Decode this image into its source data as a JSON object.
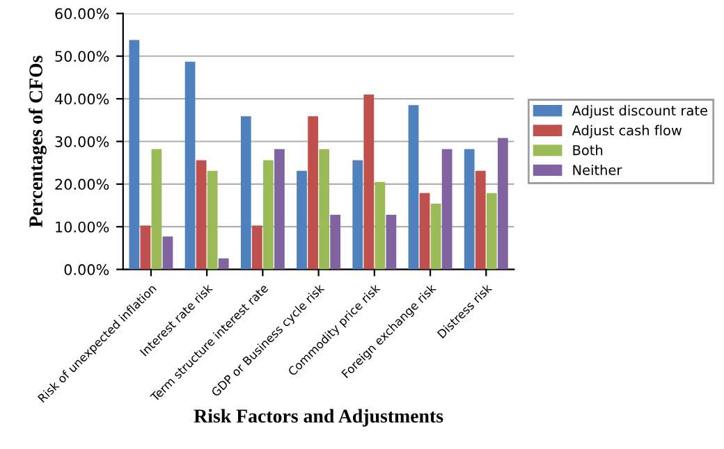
{
  "chart_data": {
    "type": "bar",
    "xlabel": "Risk Factors and Adjustments",
    "ylabel": "Percentages of CFOs",
    "categories": [
      "Risk of unexpected inflation",
      "Interest rate risk",
      "Term structure interest rate",
      "GDP or Business cycle risk",
      "Commodity price risk",
      "Foreign exchange risk",
      "Distress risk"
    ],
    "series": [
      {
        "name": "Adjust discount rate",
        "color": "#4f81bd",
        "values": [
          53.8,
          48.7,
          35.9,
          23.1,
          25.6,
          38.5,
          28.2
        ]
      },
      {
        "name": "Adjust cash flow",
        "color": "#c0504d",
        "values": [
          10.3,
          25.6,
          10.3,
          35.9,
          41.0,
          17.9,
          23.1
        ]
      },
      {
        "name": "Both",
        "color": "#9bbb59",
        "values": [
          28.2,
          23.1,
          25.6,
          28.2,
          20.5,
          15.4,
          17.9
        ]
      },
      {
        "name": "Neither",
        "color": "#8064a2",
        "values": [
          7.7,
          2.6,
          28.2,
          12.8,
          12.8,
          28.2,
          30.8
        ]
      }
    ],
    "ylim": [
      0,
      60
    ],
    "yticks": [
      {
        "value": 0,
        "label": "0.00%"
      },
      {
        "value": 10,
        "label": "10.00%"
      },
      {
        "value": 20,
        "label": "20.00%"
      },
      {
        "value": 30,
        "label": "30.00%"
      },
      {
        "value": 40,
        "label": "40.00%"
      },
      {
        "value": 50,
        "label": "50.00%"
      },
      {
        "value": 60,
        "label": "60.00%"
      }
    ],
    "grid": "y",
    "legend": "right"
  }
}
